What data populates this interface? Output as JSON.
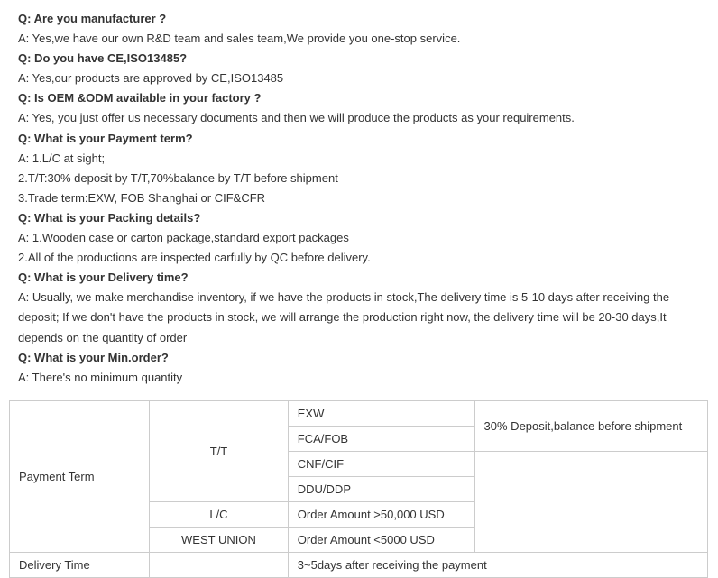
{
  "faq": {
    "items": [
      {
        "q": "Q: Are you manufacturer ?",
        "a": [
          "A: Yes,we have our own R&D team and sales team,We provide you one-stop service."
        ]
      },
      {
        "q": "Q: Do you have CE,ISO13485?",
        "a": [
          "A: Yes,our products are approved by CE,ISO13485"
        ]
      },
      {
        "q": "Q: Is OEM &ODM available in your factory ?",
        "a": [
          "A: Yes, you just offer us necessary documents and then we will produce the products as your requirements."
        ]
      },
      {
        "q": "Q: What is your Payment term?",
        "a": [
          "A: 1.L/C at sight;",
          "2.T/T:30% deposit by T/T,70%balance by T/T before shipment",
          "3.Trade term:EXW, FOB Shanghai or CIF&CFR"
        ]
      },
      {
        "q": "Q: What is your Packing details?",
        "a": [
          "A: 1.Wooden case or carton package,standard export packages",
          "2.All of the productions are inspected carfully by QC before delivery."
        ]
      },
      {
        "q": "Q: What is your Delivery time?",
        "a": [
          "A: Usually, we make merchandise inventory, if we have the products in stock,The delivery time is 5-10 days after receiving the deposit; If we don't have the products in stock, we will arrange the production right now, the delivery time will be 20-30 days,It depends on the quantity of order"
        ]
      },
      {
        "q": "Q: What is your Min.order?",
        "a": [
          "A: There's no minimum quantity"
        ]
      }
    ]
  },
  "table": {
    "payment_label": "Payment Term",
    "delivery_label": "Delivery Time",
    "tt": "T/T",
    "lc": "L/C",
    "wu": "WEST UNION",
    "exw": "EXW",
    "fca": "FCA/FOB",
    "cnf": "CNF/CIF",
    "ddu": "DDU/DDP",
    "deposit": "30% Deposit,balance before shipment",
    "order_gt": "Order Amount >50,000 USD",
    "order_lt": "Order Amount <5000 USD",
    "delivery_val": "3~5days after receiving the payment"
  },
  "style": {
    "text_color": "#333333",
    "border_color": "#cccccc",
    "background": "#ffffff",
    "faq_fontsize": 13,
    "table_fontsize": 13
  }
}
